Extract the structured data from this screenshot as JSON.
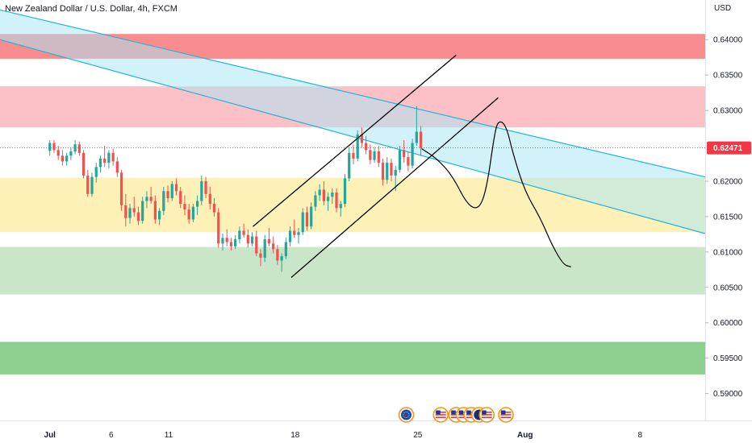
{
  "header": {
    "title": "New Zealand Dollar / U.S. Dollar, 4h, FXCM",
    "currency": "USD"
  },
  "chart_data": {
    "type": "candlestick",
    "title": "New Zealand Dollar / U.S. Dollar, 4h, FXCM",
    "ylabel": "USD",
    "ylim": [
      0.5862,
      0.6456
    ],
    "price_ticks": [
      "0.64000",
      "0.63500",
      "0.63000",
      "0.62000",
      "0.61500",
      "0.61000",
      "0.60500",
      "0.60000",
      "0.59500",
      "0.59000"
    ],
    "price_tick_values": [
      0.64,
      0.635,
      0.63,
      0.62,
      0.615,
      0.61,
      0.605,
      0.6,
      0.595,
      0.59
    ],
    "last_price": "0.62471",
    "last_price_value": 0.62471,
    "last_price_color": "#f23645",
    "date_ticks": [
      "Jul",
      "6",
      "11",
      "18",
      "25",
      "Aug",
      "8"
    ],
    "date_tick_bars": [
      0,
      16,
      31,
      64,
      96,
      124,
      154
    ],
    "xlim_bars": [
      -13,
      171
    ],
    "zones": [
      {
        "low": 0.6373,
        "high": 0.6408,
        "color": "#f77c80",
        "opacity": 0.88
      },
      {
        "low": 0.6276,
        "high": 0.6334,
        "color": "#fbb6bc",
        "opacity": 0.85
      },
      {
        "low": 0.6128,
        "high": 0.6205,
        "color": "#fdf0b0",
        "opacity": 0.9
      },
      {
        "low": 0.604,
        "high": 0.6107,
        "color": "#c9e6c8",
        "opacity": 1
      },
      {
        "low": 0.5927,
        "high": 0.5973,
        "color": "#8ccf8f",
        "opacity": 1
      }
    ],
    "descending_channel": {
      "upper": [
        [
          -13,
          0.6442
        ],
        [
          171,
          0.6206
        ]
      ],
      "lower": [
        [
          -13,
          0.64
        ],
        [
          171,
          0.6126
        ]
      ],
      "color": "#22b5d6",
      "fill": "#a6e6f5"
    },
    "ascending_channel": {
      "upper": [
        [
          53,
          0.6136
        ],
        [
          106,
          0.6378
        ]
      ],
      "lower": [
        [
          63,
          0.6064
        ],
        [
          117,
          0.6318
        ]
      ],
      "color": "#000000"
    },
    "projection_path": [
      [
        97,
        0.6246
      ],
      [
        101,
        0.6232
      ],
      [
        105,
        0.6208
      ],
      [
        109,
        0.6166
      ],
      [
        112,
        0.616
      ],
      [
        114,
        0.619
      ],
      [
        116,
        0.6266
      ],
      [
        117,
        0.6286
      ],
      [
        119,
        0.628
      ],
      [
        121,
        0.6236
      ],
      [
        124,
        0.6185
      ],
      [
        128,
        0.6148
      ],
      [
        131,
        0.611
      ],
      [
        134,
        0.6082
      ],
      [
        136,
        0.6079
      ]
    ],
    "candles": [
      [
        0.6243,
        0.6258,
        0.6236,
        0.6254
      ],
      [
        0.6254,
        0.6258,
        0.624,
        0.6244
      ],
      [
        0.6244,
        0.625,
        0.623,
        0.6236
      ],
      [
        0.6236,
        0.6244,
        0.6222,
        0.6228
      ],
      [
        0.6228,
        0.624,
        0.6222,
        0.6236
      ],
      [
        0.6236,
        0.6248,
        0.623,
        0.6242
      ],
      [
        0.6242,
        0.6258,
        0.6238,
        0.6252
      ],
      [
        0.6252,
        0.6256,
        0.6236,
        0.624
      ],
      [
        0.624,
        0.6244,
        0.6204,
        0.6208
      ],
      [
        0.6208,
        0.6216,
        0.6178,
        0.6182
      ],
      [
        0.6182,
        0.6212,
        0.6178,
        0.6206
      ],
      [
        0.6206,
        0.6226,
        0.6198,
        0.622
      ],
      [
        0.622,
        0.6236,
        0.6212,
        0.6232
      ],
      [
        0.6232,
        0.625,
        0.622,
        0.6226
      ],
      [
        0.6226,
        0.6244,
        0.6218,
        0.624
      ],
      [
        0.624,
        0.6246,
        0.6222,
        0.6228
      ],
      [
        0.6228,
        0.6234,
        0.6206,
        0.6212
      ],
      [
        0.6212,
        0.6216,
        0.6158,
        0.6166
      ],
      [
        0.6166,
        0.6182,
        0.6136,
        0.6148
      ],
      [
        0.6148,
        0.6168,
        0.614,
        0.6162
      ],
      [
        0.6162,
        0.6178,
        0.615,
        0.6156
      ],
      [
        0.6156,
        0.6164,
        0.6138,
        0.6144
      ],
      [
        0.6144,
        0.6178,
        0.614,
        0.6172
      ],
      [
        0.6172,
        0.6186,
        0.6162,
        0.6178
      ],
      [
        0.6178,
        0.6192,
        0.6168,
        0.6172
      ],
      [
        0.6172,
        0.618,
        0.614,
        0.6146
      ],
      [
        0.6146,
        0.6162,
        0.6138,
        0.6158
      ],
      [
        0.6158,
        0.6192,
        0.6152,
        0.6186
      ],
      [
        0.6186,
        0.6194,
        0.617,
        0.6176
      ],
      [
        0.6176,
        0.62,
        0.6172,
        0.6196
      ],
      [
        0.6196,
        0.6204,
        0.618,
        0.6186
      ],
      [
        0.6186,
        0.6192,
        0.6162,
        0.6168
      ],
      [
        0.6168,
        0.618,
        0.6152,
        0.616
      ],
      [
        0.616,
        0.6168,
        0.614,
        0.6146
      ],
      [
        0.6146,
        0.6168,
        0.6142,
        0.6164
      ],
      [
        0.6164,
        0.618,
        0.6152,
        0.6172
      ],
      [
        0.6172,
        0.6208,
        0.6166,
        0.62
      ],
      [
        0.62,
        0.6206,
        0.6176,
        0.6182
      ],
      [
        0.6182,
        0.6192,
        0.616,
        0.6168
      ],
      [
        0.6168,
        0.6176,
        0.615,
        0.6156
      ],
      [
        0.6156,
        0.6162,
        0.6106,
        0.6112
      ],
      [
        0.6112,
        0.6126,
        0.6102,
        0.612
      ],
      [
        0.612,
        0.6132,
        0.6108,
        0.6114
      ],
      [
        0.6114,
        0.612,
        0.6102,
        0.6108
      ],
      [
        0.6108,
        0.6124,
        0.6104,
        0.6118
      ],
      [
        0.6118,
        0.6136,
        0.6112,
        0.613
      ],
      [
        0.613,
        0.614,
        0.612,
        0.6124
      ],
      [
        0.6124,
        0.6132,
        0.6106,
        0.6112
      ],
      [
        0.6112,
        0.6128,
        0.6108,
        0.6122
      ],
      [
        0.6122,
        0.613,
        0.6094,
        0.6098
      ],
      [
        0.6098,
        0.6104,
        0.608,
        0.6092
      ],
      [
        0.6092,
        0.6124,
        0.6086,
        0.6118
      ],
      [
        0.6118,
        0.6134,
        0.6108,
        0.6112
      ],
      [
        0.6112,
        0.6122,
        0.6098,
        0.6104
      ],
      [
        0.6104,
        0.611,
        0.6082,
        0.6088
      ],
      [
        0.6088,
        0.6098,
        0.6072,
        0.6094
      ],
      [
        0.6094,
        0.612,
        0.609,
        0.6114
      ],
      [
        0.6114,
        0.6136,
        0.6108,
        0.613
      ],
      [
        0.613,
        0.6146,
        0.612,
        0.6124
      ],
      [
        0.6124,
        0.6134,
        0.6112,
        0.6128
      ],
      [
        0.6128,
        0.6162,
        0.6124,
        0.6156
      ],
      [
        0.6156,
        0.6164,
        0.613,
        0.6136
      ],
      [
        0.6136,
        0.617,
        0.6132,
        0.6164
      ],
      [
        0.6164,
        0.6186,
        0.6158,
        0.618
      ],
      [
        0.618,
        0.6196,
        0.6172,
        0.6188
      ],
      [
        0.6188,
        0.62,
        0.6166,
        0.6172
      ],
      [
        0.6172,
        0.6184,
        0.6158,
        0.6178
      ],
      [
        0.6178,
        0.619,
        0.6168,
        0.6184
      ],
      [
        0.6184,
        0.619,
        0.6156,
        0.6162
      ],
      [
        0.6162,
        0.6172,
        0.615,
        0.6168
      ],
      [
        0.6168,
        0.621,
        0.6164,
        0.6204
      ],
      [
        0.6204,
        0.6248,
        0.62,
        0.624
      ],
      [
        0.624,
        0.6252,
        0.6224,
        0.6232
      ],
      [
        0.6232,
        0.6272,
        0.6228,
        0.6266
      ],
      [
        0.6266,
        0.6276,
        0.6248,
        0.6254
      ],
      [
        0.6254,
        0.6264,
        0.6238,
        0.6244
      ],
      [
        0.6244,
        0.6252,
        0.6224,
        0.623
      ],
      [
        0.623,
        0.6248,
        0.6226,
        0.6242
      ],
      [
        0.6242,
        0.625,
        0.622,
        0.6226
      ],
      [
        0.6226,
        0.6232,
        0.6194,
        0.6202
      ],
      [
        0.6202,
        0.6234,
        0.6196,
        0.6226
      ],
      [
        0.6226,
        0.6232,
        0.62,
        0.6208
      ],
      [
        0.6208,
        0.6222,
        0.6186,
        0.6216
      ],
      [
        0.6216,
        0.625,
        0.6212,
        0.6244
      ],
      [
        0.6244,
        0.6258,
        0.6226,
        0.6234
      ],
      [
        0.6234,
        0.6242,
        0.6214,
        0.6222
      ],
      [
        0.6222,
        0.626,
        0.6218,
        0.6254
      ],
      [
        0.6254,
        0.6306,
        0.625,
        0.627
      ],
      [
        0.627,
        0.6278,
        0.6236,
        0.6247
      ]
    ],
    "candle_x_start": 0,
    "candle_x_step": 1.1,
    "up_color": "#26a69a",
    "down_color": "#ef5350",
    "event_icons": [
      {
        "bar": 93,
        "kind": "eu"
      },
      {
        "bar": 102,
        "kind": "us"
      },
      {
        "bar": 106,
        "kind": "us"
      },
      {
        "bar": 108,
        "kind": "us"
      },
      {
        "bar": 110,
        "kind": "us"
      },
      {
        "bar": 112,
        "kind": "nz"
      },
      {
        "bar": 114,
        "kind": "us"
      },
      {
        "bar": 119,
        "kind": "us"
      }
    ]
  }
}
